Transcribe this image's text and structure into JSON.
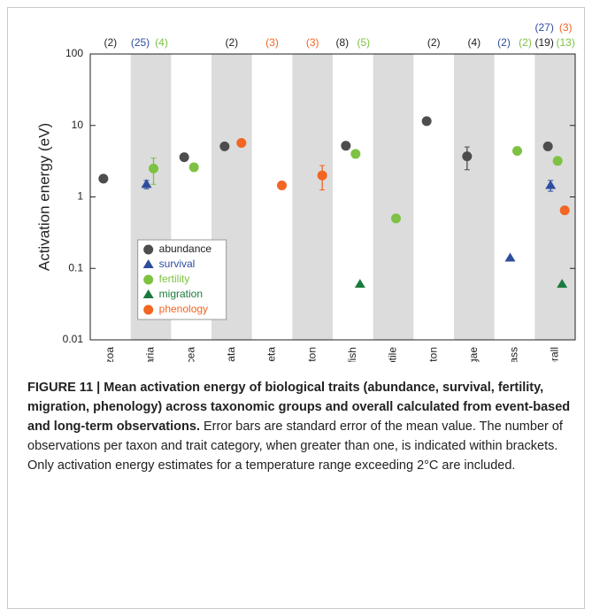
{
  "chart_data": {
    "type": "scatter",
    "ylabel": "Activation energy (eV)",
    "log_y": true,
    "ylim": [
      0.01,
      100
    ],
    "yticks": [
      0.01,
      0.1,
      1,
      10,
      100
    ],
    "categories": [
      "bryozoa",
      "cnidaria",
      "crustacea",
      "echinodermata",
      "polychaeta",
      "zooplankton",
      "fish",
      "reptile",
      "phytoplankton",
      "macroalgae",
      "seagrass",
      "overall"
    ],
    "shaded_color": "#dcdcdc",
    "legend": "lower-left",
    "series": [
      {
        "name": "abundance",
        "color": "#4d4d4d",
        "marker": "circle",
        "values": [
          1.8,
          null,
          3.6,
          5.1,
          null,
          null,
          5.2,
          null,
          11.5,
          3.7,
          null,
          5.1
        ],
        "errors": [
          null,
          null,
          null,
          null,
          null,
          null,
          0.5,
          null,
          null,
          1.3,
          null,
          0.6
        ],
        "counts": [
          "(2)",
          null,
          null,
          "(2)",
          null,
          null,
          "(8)",
          null,
          "(2)",
          "(4)",
          null,
          "(19)"
        ]
      },
      {
        "name": "survival",
        "color": "#2f4d9e",
        "marker": "triangle",
        "values": [
          null,
          1.5,
          null,
          null,
          null,
          null,
          null,
          null,
          null,
          null,
          0.14,
          1.45
        ],
        "errors": [
          null,
          0.2,
          null,
          null,
          null,
          null,
          null,
          null,
          null,
          null,
          null,
          0.25
        ],
        "counts": [
          null,
          "(25)",
          null,
          null,
          null,
          null,
          null,
          null,
          null,
          null,
          "(2)",
          "(27)"
        ]
      },
      {
        "name": "fertility",
        "color": "#7dc242",
        "marker": "circle",
        "values": [
          null,
          2.5,
          2.6,
          null,
          null,
          null,
          4.0,
          0.5,
          null,
          null,
          4.4,
          3.2
        ],
        "errors": [
          null,
          1.0,
          null,
          null,
          null,
          null,
          0.5,
          null,
          null,
          null,
          null,
          0.4
        ],
        "counts": [
          null,
          "(4)",
          null,
          null,
          null,
          null,
          "(5)",
          null,
          null,
          null,
          "(2)",
          "(13)"
        ]
      },
      {
        "name": "migration",
        "color": "#1b7a3d",
        "marker": "triangle",
        "values": [
          null,
          null,
          null,
          null,
          null,
          null,
          0.06,
          null,
          null,
          null,
          null,
          0.06
        ],
        "errors": [
          null,
          null,
          null,
          null,
          null,
          null,
          null,
          null,
          null,
          null,
          null,
          null
        ],
        "counts": [
          null,
          null,
          null,
          null,
          null,
          null,
          null,
          null,
          null,
          null,
          null,
          null
        ]
      },
      {
        "name": "phenology",
        "color": "#f26522",
        "marker": "circle",
        "values": [
          null,
          null,
          null,
          5.7,
          1.45,
          2.0,
          null,
          null,
          null,
          null,
          null,
          0.65
        ],
        "errors": [
          null,
          null,
          null,
          null,
          null,
          0.75,
          null,
          null,
          null,
          null,
          null,
          null
        ],
        "counts": [
          null,
          null,
          null,
          null,
          "(3)",
          "(3)",
          null,
          null,
          null,
          null,
          null,
          "(3)"
        ]
      }
    ]
  },
  "caption": {
    "title": "FIGURE 11 | Mean activation energy of biological traits (abundance, survival, fertility, migration, phenology) across taxonomic groups and overall calculated from event-based and long-term observations.",
    "text": "Error bars are standard error of the mean value. The number of observations per taxon and trait category, when greater than one, is indicated within brackets. Only activation energy estimates for a temperature range exceeding 2°C are included."
  }
}
